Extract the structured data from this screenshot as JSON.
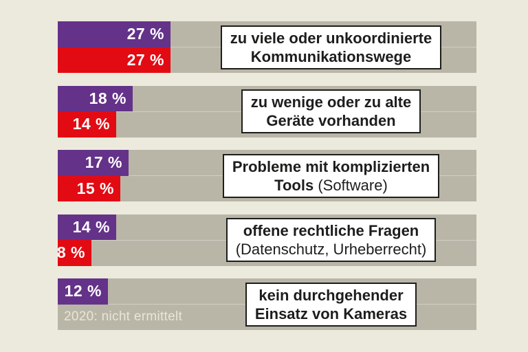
{
  "colors": {
    "background": "#eceadd",
    "band": "#b9b6a7",
    "purple": "#643289",
    "red": "#e30b13",
    "box_bg": "#ffffff",
    "box_border": "#1d1d1b",
    "bar_text": "#ffffff",
    "note_text": "#e9e6d8"
  },
  "chart_data": {
    "type": "bar",
    "orientation": "horizontal",
    "legend": "none",
    "value_unit": "%",
    "categories": [
      "zu viele oder unkoordinierte Kommunikationswege",
      "zu wenige oder zu alte Geräte vorhanden",
      "Probleme mit komplizierten Tools (Software)",
      "offene rechtliche Fragen (Datenschutz, Urheberrecht)",
      "kein durchgehender Einsatz von Kameras"
    ],
    "series": [
      {
        "name": "purple",
        "color": "#643289",
        "values": [
          27,
          18,
          17,
          14,
          12
        ]
      },
      {
        "name": "red (2020)",
        "color": "#e30b13",
        "values": [
          27,
          14,
          15,
          8,
          null
        ]
      }
    ],
    "annotations": [
      {
        "category_index": 4,
        "series": "red (2020)",
        "text": "2020: nicht ermittelt"
      }
    ]
  },
  "groups": [
    {
      "bars": [
        {
          "value": 27,
          "label": "27 %",
          "color_key": "purple"
        },
        {
          "value": 27,
          "label": "27 %",
          "color_key": "red"
        }
      ],
      "label_lines": [
        [
          {
            "text": "zu viele oder unkoordinierte",
            "bold": true
          }
        ],
        [
          {
            "text": "Kommunikationswege",
            "bold": true
          }
        ]
      ]
    },
    {
      "bars": [
        {
          "value": 18,
          "label": "18 %",
          "color_key": "purple"
        },
        {
          "value": 14,
          "label": "14 %",
          "color_key": "red"
        }
      ],
      "label_lines": [
        [
          {
            "text": "zu wenige oder zu alte",
            "bold": true
          }
        ],
        [
          {
            "text": "Geräte vorhanden",
            "bold": true
          }
        ]
      ]
    },
    {
      "bars": [
        {
          "value": 17,
          "label": "17 %",
          "color_key": "purple"
        },
        {
          "value": 15,
          "label": "15 %",
          "color_key": "red"
        }
      ],
      "label_lines": [
        [
          {
            "text": "Probleme mit komplizierten",
            "bold": true
          }
        ],
        [
          {
            "text": "Tools",
            "bold": true
          },
          {
            "text": " (Software)",
            "bold": false
          }
        ]
      ]
    },
    {
      "bars": [
        {
          "value": 14,
          "label": "14 %",
          "color_key": "purple"
        },
        {
          "value": 8,
          "label": "8 %",
          "color_key": "red"
        }
      ],
      "label_lines": [
        [
          {
            "text": "offene rechtliche Fragen",
            "bold": true
          }
        ],
        [
          {
            "text": "(Datenschutz, Urheberrecht)",
            "bold": false
          }
        ]
      ]
    },
    {
      "bars": [
        {
          "value": 12,
          "label": "12 %",
          "color_key": "purple"
        }
      ],
      "note": "2020: nicht ermittelt",
      "label_lines": [
        [
          {
            "text": "kein durchgehender",
            "bold": true
          }
        ],
        [
          {
            "text": "Einsatz von Kameras",
            "bold": true
          }
        ]
      ]
    }
  ]
}
